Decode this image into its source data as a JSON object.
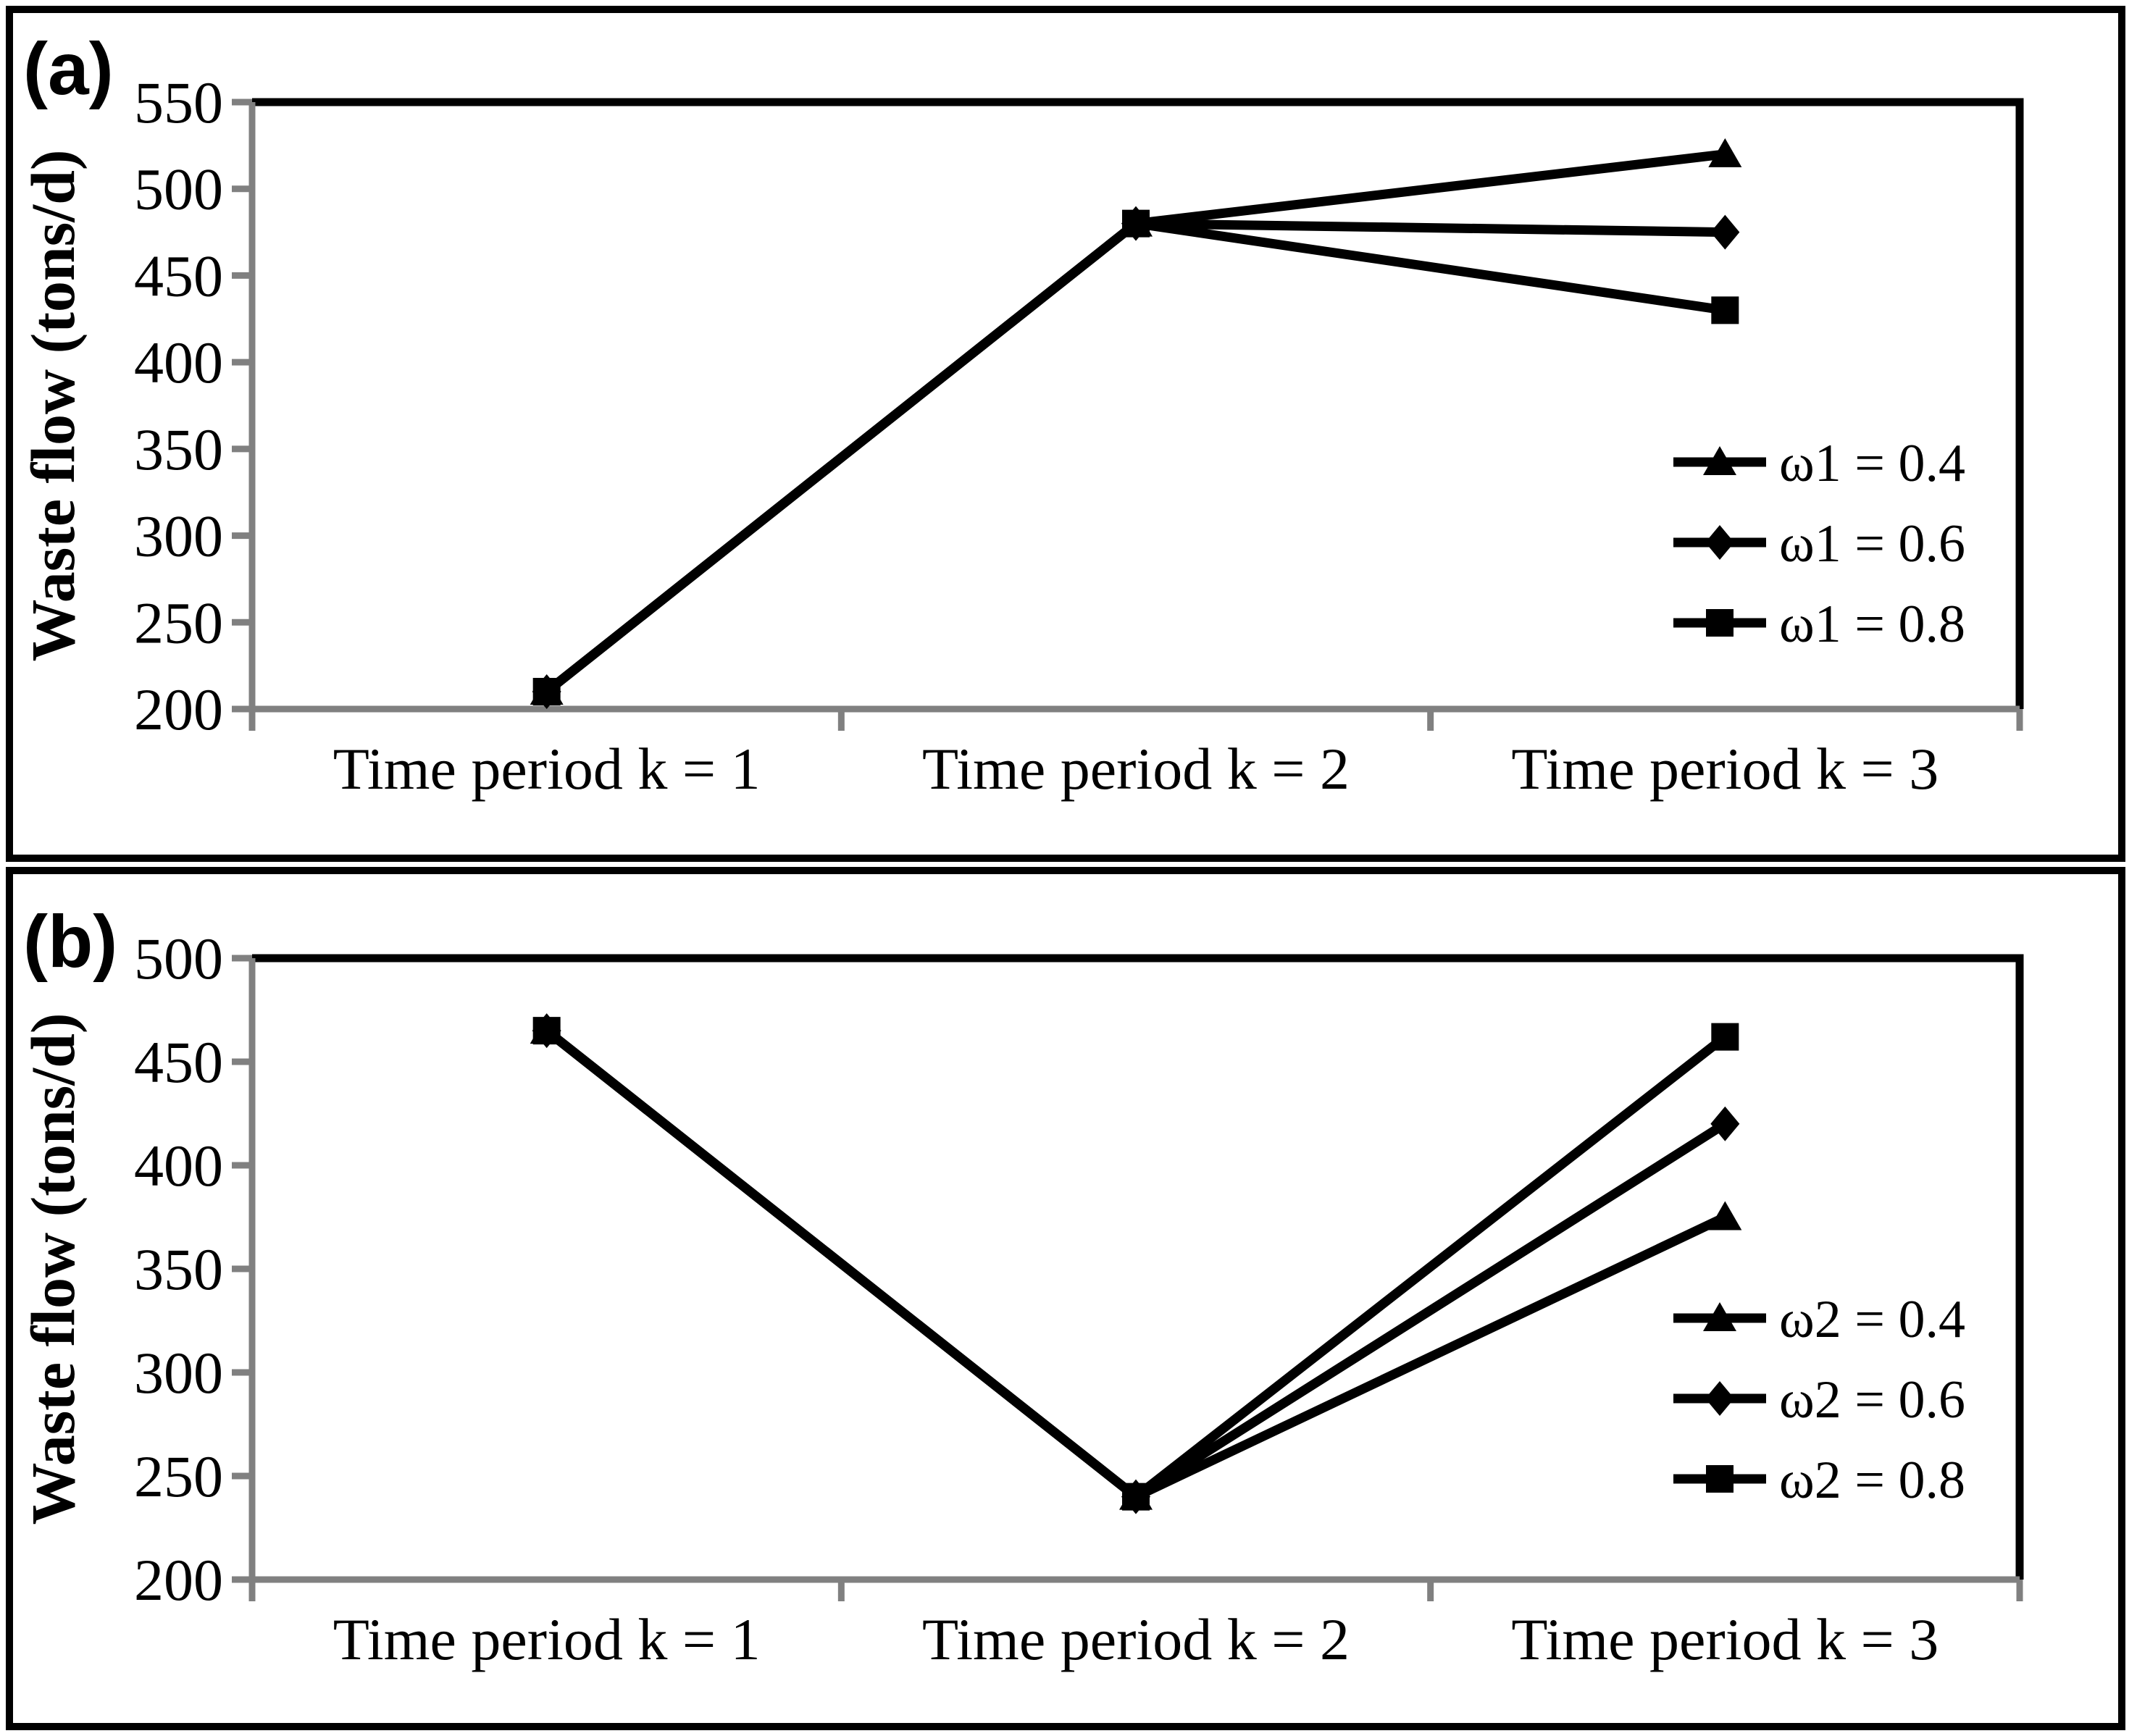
{
  "figure": {
    "background": "#ffffff",
    "panel_border_color": "#000000"
  },
  "chart_data": [
    {
      "type": "line",
      "panel_label": "(a)",
      "title": "",
      "ylabel": "Waste flow (tons/d)",
      "xlabel": "",
      "categories": [
        "Time period k = 1",
        "Time period k = 2",
        "Time period k = 3"
      ],
      "series": [
        {
          "name": "ω1 = 0.4",
          "marker": "triangle",
          "values": [
            210,
            480,
            520
          ]
        },
        {
          "name": "ω1 = 0.6",
          "marker": "diamond",
          "values": [
            210,
            480,
            475
          ]
        },
        {
          "name": "ω1 = 0.8",
          "marker": "square",
          "values": [
            210,
            480,
            430
          ]
        }
      ],
      "ylim": [
        200,
        550
      ],
      "ytick_step": 50,
      "ytick_labels": [
        "200",
        "250",
        "300",
        "350",
        "400",
        "450",
        "500",
        "550"
      ],
      "grid": false,
      "legend_position": "inside-right",
      "series_color": "#000000",
      "axis_color": "#808080"
    },
    {
      "type": "line",
      "panel_label": "(b)",
      "title": "",
      "ylabel": "Waste flow (tons/d)",
      "xlabel": "",
      "categories": [
        "Time period k = 1",
        "Time period k = 2",
        "Time period k = 3"
      ],
      "series": [
        {
          "name": "ω2 = 0.4",
          "marker": "triangle",
          "values": [
            465,
            240,
            375
          ]
        },
        {
          "name": "ω2 = 0.6",
          "marker": "diamond",
          "values": [
            465,
            240,
            420
          ]
        },
        {
          "name": "ω2 = 0.8",
          "marker": "square",
          "values": [
            465,
            240,
            462
          ]
        }
      ],
      "ylim": [
        200,
        500
      ],
      "ytick_step": 50,
      "ytick_labels": [
        "200",
        "250",
        "300",
        "350",
        "400",
        "450",
        "500"
      ],
      "grid": false,
      "legend_position": "inside-right",
      "series_color": "#000000",
      "axis_color": "#808080"
    }
  ]
}
